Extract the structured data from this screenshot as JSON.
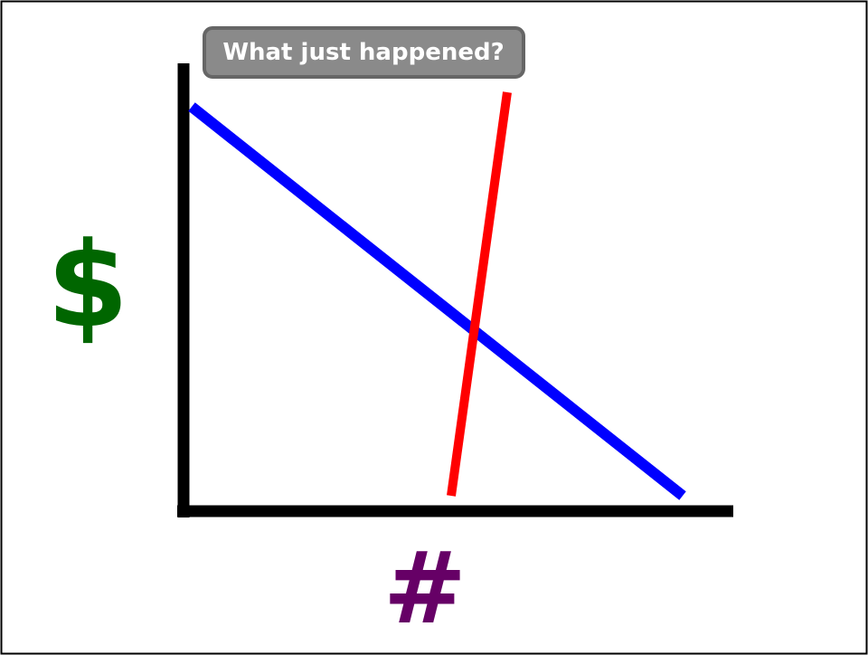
{
  "button": {
    "label": "What just happened?"
  },
  "y_axis": {
    "label": "$"
  },
  "x_axis": {
    "label": "#"
  }
}
